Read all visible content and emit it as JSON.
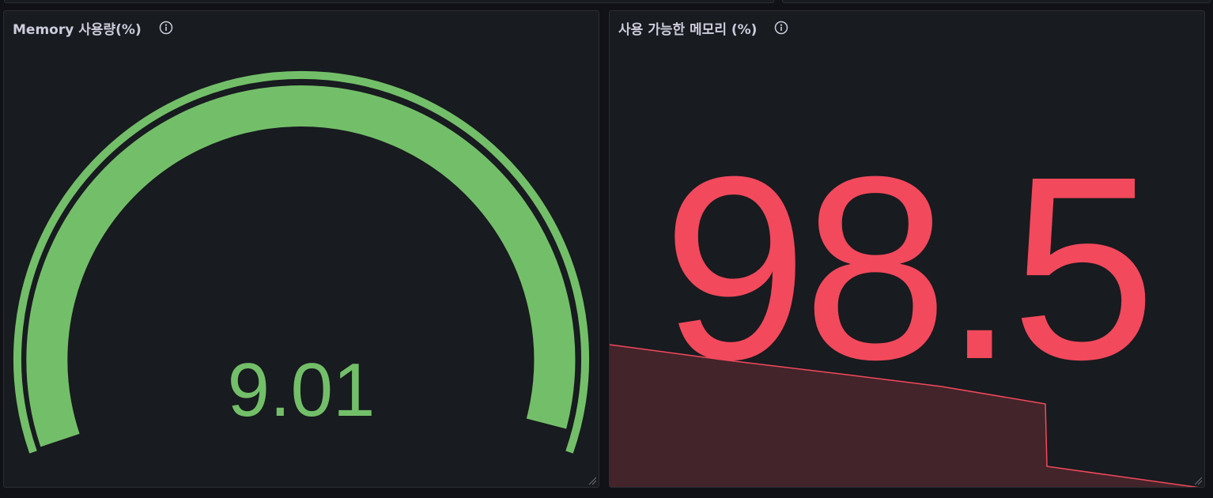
{
  "colors": {
    "green": "#73bf69",
    "red": "#f2495c",
    "text": "#ccccdc",
    "panel_bg": "#181b1f",
    "page_bg": "#111217"
  },
  "panels": [
    {
      "title": "Memory 사용량(%)",
      "type": "gauge",
      "value": "9.01",
      "icon": "info-icon"
    },
    {
      "title": "사용 가능한 메모리 (%)",
      "type": "stat",
      "value": "98.5",
      "icon": "info-icon"
    }
  ]
}
